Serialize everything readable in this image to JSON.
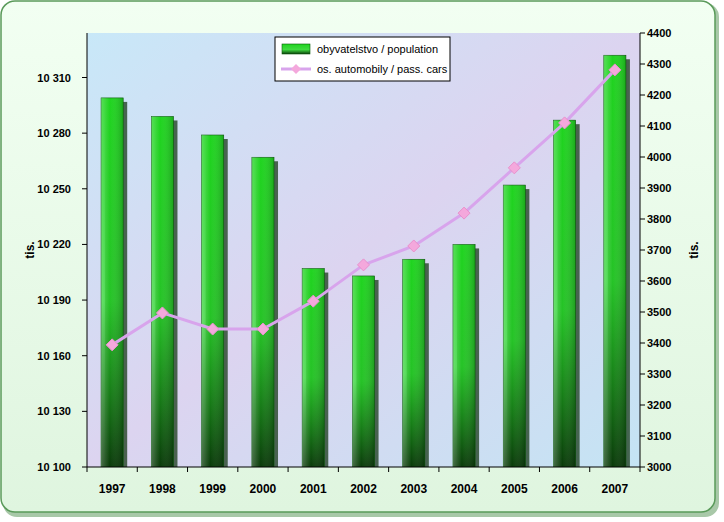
{
  "chart_data": {
    "type": "bar",
    "categories": [
      "1997",
      "1998",
      "1999",
      "2000",
      "2001",
      "2002",
      "2003",
      "2004",
      "2005",
      "2006",
      "2007"
    ],
    "series": [
      {
        "name": "obyvatelstvo / population",
        "type": "bar",
        "color": "#1fd41f",
        "values": [
          10299,
          10289,
          10279,
          10267,
          10207,
          10203,
          10212,
          10220,
          10252,
          10287,
          10322
        ]
      },
      {
        "name": "os. automobily / pass. cars",
        "type": "line",
        "axis": "y2",
        "color": "#d8a4ec",
        "marker": "diamond",
        "values": [
          3394,
          3497,
          3445,
          3445,
          3535,
          3652,
          3713,
          3819,
          3965,
          4110,
          4281
        ]
      }
    ],
    "y_label": "tis.",
    "y2_label": "tis.",
    "ylim": [
      10100,
      10334
    ],
    "yticks": [
      {
        "value": 10100,
        "label": "10 100"
      },
      {
        "value": 10130,
        "label": "10 130"
      },
      {
        "value": 10160,
        "label": "10 160"
      },
      {
        "value": 10190,
        "label": "10 190"
      },
      {
        "value": 10220,
        "label": "10 220"
      },
      {
        "value": 10250,
        "label": "10 250"
      },
      {
        "value": 10280,
        "label": "10 280"
      },
      {
        "value": 10310,
        "label": "10 310"
      }
    ],
    "y2lim": [
      3000,
      4400
    ],
    "y2ticks": [
      3000,
      3100,
      3200,
      3300,
      3400,
      3500,
      3600,
      3700,
      3800,
      3900,
      4000,
      4100,
      4200,
      4300,
      4400
    ],
    "grid": false,
    "legend": "top"
  }
}
